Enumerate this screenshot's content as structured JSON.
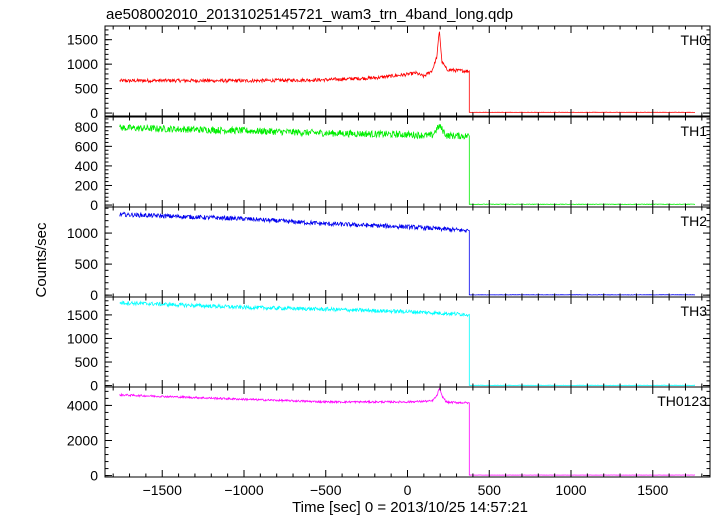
{
  "chart_data": {
    "type": "line",
    "title": "ae508002010_20131025145721_wam3_trn_4band_long.qdp",
    "xlabel": "Time [sec] 0 = 2013/10/25 14:57:21",
    "ylabel": "Counts/sec",
    "xlim": [
      -1850,
      1850
    ],
    "x_ticks": [
      -1500,
      -1000,
      -500,
      0,
      500,
      1000,
      1500
    ],
    "x_tick_labels": [
      "−1500",
      "−1000",
      "−500",
      "0",
      "500",
      "1000",
      "1500"
    ],
    "cutoff_time": 378,
    "panels": [
      {
        "name": "TH0",
        "color": "#ff0000",
        "ylim": [
          -60,
          1780
        ],
        "y_ticks": [
          0,
          500,
          1000,
          1500
        ],
        "y_tick_labels": [
          "0",
          "500",
          "1000",
          "1500"
        ],
        "x": [
          -1760,
          -1500,
          -1000,
          -500,
          -200,
          0,
          50,
          100,
          150,
          180,
          195,
          210,
          240,
          300,
          370
        ],
        "values": [
          660,
          665,
          660,
          680,
          720,
          790,
          820,
          750,
          870,
          1150,
          1720,
          1050,
          890,
          870,
          860
        ],
        "noise": 35,
        "after_cutoff": 15
      },
      {
        "name": "TH1",
        "color": "#00ee00",
        "ylim": [
          -20,
          900
        ],
        "y_ticks": [
          0,
          200,
          400,
          600,
          800
        ],
        "y_tick_labels": [
          "0",
          "200",
          "400",
          "600",
          "800"
        ],
        "x": [
          -1760,
          -1000,
          -500,
          0,
          150,
          195,
          240,
          370
        ],
        "values": [
          790,
          760,
          735,
          720,
          710,
          810,
          710,
          705
        ],
        "noise": 35,
        "after_cutoff": 8
      },
      {
        "name": "TH2",
        "color": "#0000ee",
        "ylim": [
          -30,
          1420
        ],
        "y_ticks": [
          0,
          500,
          1000
        ],
        "y_tick_labels": [
          "0",
          "500",
          "1000"
        ],
        "x": [
          -1760,
          -1000,
          -500,
          0,
          370
        ],
        "values": [
          1300,
          1230,
          1150,
          1100,
          1040
        ],
        "noise": 35,
        "after_cutoff": 5
      },
      {
        "name": "TH3",
        "color": "#00ffff",
        "ylim": [
          -30,
          1880
        ],
        "y_ticks": [
          0,
          500,
          1000,
          1500
        ],
        "y_tick_labels": [
          "0",
          "500",
          "1000",
          "1500"
        ],
        "x": [
          -1760,
          -1000,
          -500,
          0,
          370
        ],
        "values": [
          1760,
          1660,
          1620,
          1570,
          1510
        ],
        "noise": 40,
        "after_cutoff": 5
      },
      {
        "name": "TH0123",
        "color": "#ff00ff",
        "ylim": [
          -80,
          5050
        ],
        "y_ticks": [
          0,
          2000,
          4000
        ],
        "y_tick_labels": [
          "0",
          "2000",
          "4000"
        ],
        "x": [
          -1760,
          -1000,
          -500,
          0,
          150,
          180,
          195,
          210,
          240,
          370
        ],
        "values": [
          4600,
          4350,
          4200,
          4200,
          4250,
          4550,
          5000,
          4550,
          4180,
          4150
        ],
        "noise": 55,
        "after_cutoff": 30
      }
    ]
  }
}
